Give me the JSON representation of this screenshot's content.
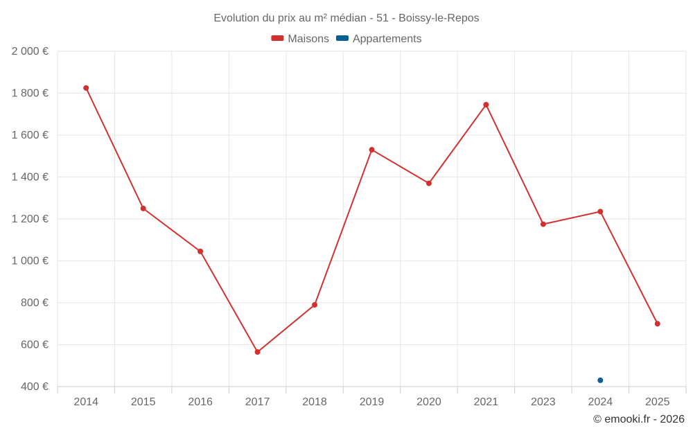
{
  "chart_data": {
    "type": "line",
    "title": "Evolution du prix au m² médian - 51 - Boissy-le-Repos",
    "categories": [
      "2014",
      "2015",
      "2016",
      "2017",
      "2018",
      "2019",
      "2020",
      "2021",
      "2023",
      "2024",
      "2025"
    ],
    "series": [
      {
        "name": "Maisons",
        "color": "#d32f2f",
        "values": [
          1825,
          1250,
          1045,
          565,
          790,
          1530,
          1370,
          1745,
          1175,
          1235,
          700
        ]
      },
      {
        "name": "Appartements",
        "color": "#0b5f97",
        "values": [
          null,
          null,
          null,
          null,
          null,
          null,
          null,
          null,
          null,
          430,
          null
        ]
      }
    ],
    "ylim": [
      400,
      2000
    ],
    "yticks": [
      400,
      600,
      800,
      1000,
      1200,
      1400,
      1600,
      1800,
      2000
    ],
    "ytick_labels": [
      "400 €",
      "600 €",
      "800 €",
      "1 000 €",
      "1 200 €",
      "1 400 €",
      "1 600 €",
      "1 800 €",
      "2 000 €"
    ],
    "grid": true,
    "legend_position": "top-center",
    "xlabel": "",
    "ylabel": ""
  },
  "credit": "© emooki.fr - 2026"
}
